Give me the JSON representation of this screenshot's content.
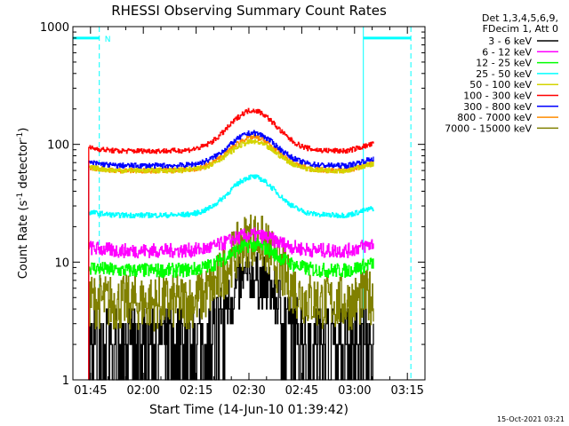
{
  "chart_data": {
    "type": "line",
    "title": "RHESSI Observing Summary Count Rates",
    "xlabel": "Start Time (14-Jun-10 01:39:42)",
    "ylabel_parts": [
      "Count Rate (s",
      "-1",
      " detector",
      "-1",
      ")"
    ],
    "yscale": "log",
    "xlim_minutes_after_0130": [
      10,
      110
    ],
    "ylim": [
      1,
      1000
    ],
    "x_ticks": [
      {
        "label": "01:45",
        "min": 15
      },
      {
        "label": "02:00",
        "min": 30
      },
      {
        "label": "02:15",
        "min": 45
      },
      {
        "label": "02:30",
        "min": 60
      },
      {
        "label": "02:45",
        "min": 75
      },
      {
        "label": "03:00",
        "min": 90
      },
      {
        "label": "03:15",
        "min": 105
      }
    ],
    "y_ticks": [
      {
        "label": "1",
        "value": 1
      },
      {
        "label": "10",
        "value": 10
      },
      {
        "label": "100",
        "value": 100
      },
      {
        "label": "1000",
        "value": 1000
      }
    ],
    "legend_header": [
      "Det 1,3,4,5,6,9,",
      "FDecim 1, Att 0"
    ],
    "legend_position": "right",
    "series": [
      {
        "name": "3 - 6 keV",
        "color": "#000000",
        "base": 2.5,
        "peak": 7.5
      },
      {
        "name": "6 - 12 keV",
        "color": "#ff00ff",
        "base": 12.5,
        "peak": 17
      },
      {
        "name": "12 - 25 keV",
        "color": "#00ff00",
        "base": 8.5,
        "peak": 14
      },
      {
        "name": "25 - 50 keV",
        "color": "#00ffff",
        "base": 25,
        "peak": 53
      },
      {
        "name": "50 - 100 keV",
        "color": "#d4d400",
        "base": 60,
        "peak": 105
      },
      {
        "name": "100 - 300 keV",
        "color": "#ff0000",
        "base": 88,
        "peak": 195
      },
      {
        "name": "300 - 800 keV",
        "color": "#0000ff",
        "base": 66,
        "peak": 125
      },
      {
        "name": "800 - 7000 keV",
        "color": "#ff8c00",
        "base": 60,
        "peak": 115
      },
      {
        "name": "7000 - 15000 keV",
        "color": "#808000",
        "base": 4.5,
        "peak": 16
      }
    ],
    "span_minutes": [
      14.5,
      95.5
    ],
    "peak_minute": 61,
    "attenuator_flag": {
      "label": "N",
      "value": 800,
      "intervals": [
        [
          10,
          17.5
        ],
        [
          92.5,
          106
        ]
      ],
      "dashed_lines_min": [
        17.5,
        106
      ]
    },
    "night_boundaries_min": [
      92.5
    ]
  },
  "footer": {
    "timestamp": "15-Oct-2021 03:21"
  }
}
